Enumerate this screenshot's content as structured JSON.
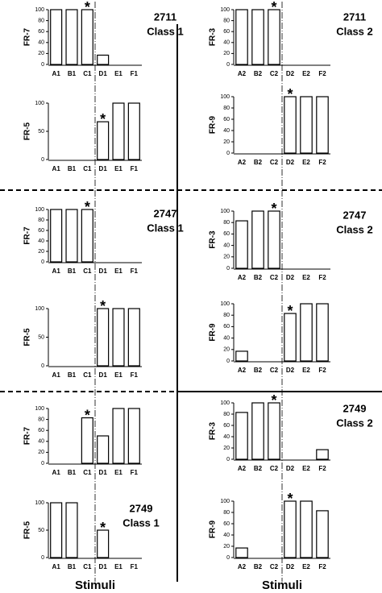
{
  "chart_data": [
    {
      "type": "bar",
      "ylabel": "FR-7",
      "categories": [
        "A1",
        "B1",
        "C1",
        "D1",
        "E1",
        "F1"
      ],
      "values": [
        100,
        100,
        100,
        17,
        0,
        0
      ],
      "ylim": [
        0,
        100
      ],
      "yticks": [
        0,
        20,
        40,
        60,
        80,
        100
      ],
      "color": "#ffffff",
      "annotations": [
        {
          "text": "*",
          "x": "C1"
        }
      ],
      "label_lines": [
        "2711",
        "Class 1"
      ]
    },
    {
      "type": "bar",
      "ylabel": "FR-5",
      "categories": [
        "A1",
        "B1",
        "C1",
        "D1",
        "E1",
        "F1"
      ],
      "values": [
        0,
        0,
        0,
        67,
        100,
        100
      ],
      "ylim": [
        0,
        100
      ],
      "yticks": [
        0,
        50,
        100
      ],
      "color": "#ffffff",
      "annotations": [
        {
          "text": "*",
          "x": "D1"
        }
      ]
    },
    {
      "type": "bar",
      "ylabel": "FR-3",
      "categories": [
        "A2",
        "B2",
        "C2",
        "D2",
        "E2",
        "F2"
      ],
      "values": [
        100,
        100,
        100,
        0,
        0,
        0
      ],
      "ylim": [
        0,
        100
      ],
      "yticks": [
        0,
        20,
        40,
        60,
        80,
        100
      ],
      "color": "#ffffff",
      "annotations": [
        {
          "text": "*",
          "x": "C2"
        }
      ],
      "label_lines": [
        "2711",
        "Class 2"
      ]
    },
    {
      "type": "bar",
      "ylabel": "FR-9",
      "categories": [
        "A2",
        "B2",
        "C2",
        "D2",
        "E2",
        "F2"
      ],
      "values": [
        0,
        0,
        0,
        100,
        100,
        100
      ],
      "ylim": [
        0,
        100
      ],
      "yticks": [
        0,
        20,
        40,
        60,
        80,
        100
      ],
      "color": "#ffffff",
      "annotations": [
        {
          "text": "*",
          "x": "D2"
        }
      ]
    },
    {
      "type": "bar",
      "ylabel": "FR-7",
      "categories": [
        "A1",
        "B1",
        "C1",
        "D1",
        "E1",
        "F1"
      ],
      "values": [
        100,
        100,
        100,
        0,
        0,
        0
      ],
      "ylim": [
        0,
        100
      ],
      "yticks": [
        0,
        20,
        40,
        60,
        80,
        100
      ],
      "color": "#ffffff",
      "annotations": [
        {
          "text": "*",
          "x": "C1"
        }
      ],
      "label_lines": [
        "2747",
        "Class 1"
      ]
    },
    {
      "type": "bar",
      "ylabel": "FR-5",
      "categories": [
        "A1",
        "B1",
        "C1",
        "D1",
        "E1",
        "F1"
      ],
      "values": [
        0,
        0,
        0,
        100,
        100,
        100
      ],
      "ylim": [
        0,
        100
      ],
      "yticks": [
        0,
        50,
        100
      ],
      "color": "#ffffff",
      "annotations": [
        {
          "text": "*",
          "x": "D1"
        }
      ]
    },
    {
      "type": "bar",
      "ylabel": "FR-3",
      "categories": [
        "A2",
        "B2",
        "C2",
        "D2",
        "E2",
        "F2"
      ],
      "values": [
        83,
        100,
        100,
        0,
        0,
        0
      ],
      "ylim": [
        0,
        100
      ],
      "yticks": [
        0,
        20,
        40,
        60,
        80,
        100
      ],
      "color": "#ffffff",
      "annotations": [
        {
          "text": "*",
          "x": "C2"
        }
      ],
      "label_lines": [
        "2747",
        "Class 2"
      ]
    },
    {
      "type": "bar",
      "ylabel": "FR-9",
      "categories": [
        "A2",
        "B2",
        "C2",
        "D2",
        "E2",
        "F2"
      ],
      "values": [
        17,
        0,
        0,
        83,
        100,
        100
      ],
      "ylim": [
        0,
        100
      ],
      "yticks": [
        0,
        20,
        40,
        60,
        80,
        100
      ],
      "color": "#ffffff",
      "annotations": [
        {
          "text": "*",
          "x": "D2"
        }
      ]
    },
    {
      "type": "bar",
      "ylabel": "FR-7",
      "categories": [
        "A1",
        "B1",
        "C1",
        "D1",
        "E1",
        "F1"
      ],
      "values": [
        0,
        0,
        83,
        50,
        100,
        100
      ],
      "ylim": [
        0,
        100
      ],
      "yticks": [
        0,
        20,
        40,
        60,
        80,
        100
      ],
      "color": "#ffffff",
      "annotations": [
        {
          "text": "*",
          "x": "C1"
        }
      ]
    },
    {
      "type": "bar",
      "ylabel": "FR-5",
      "categories": [
        "A1",
        "B1",
        "C1",
        "D1",
        "E1",
        "F1"
      ],
      "values": [
        100,
        100,
        0,
        50,
        0,
        0
      ],
      "ylim": [
        0,
        100
      ],
      "yticks": [
        0,
        50,
        100
      ],
      "color": "#ffffff",
      "annotations": [
        {
          "text": "*",
          "x": "D1"
        }
      ],
      "label_lines": [
        "2749",
        "Class 1"
      ]
    },
    {
      "type": "bar",
      "ylabel": "FR-3",
      "categories": [
        "A2",
        "B2",
        "C2",
        "D2",
        "E2",
        "F2"
      ],
      "values": [
        83,
        100,
        100,
        0,
        0,
        17
      ],
      "ylim": [
        0,
        100
      ],
      "yticks": [
        0,
        20,
        40,
        60,
        80,
        100
      ],
      "color": "#ffffff",
      "annotations": [
        {
          "text": "*",
          "x": "C2"
        }
      ],
      "label_lines": [
        "2749",
        "Class 2"
      ]
    },
    {
      "type": "bar",
      "ylabel": "FR-9",
      "categories": [
        "A2",
        "B2",
        "C2",
        "D2",
        "E2",
        "F2"
      ],
      "values": [
        17,
        0,
        0,
        100,
        100,
        83
      ],
      "ylim": [
        0,
        100
      ],
      "yticks": [
        0,
        20,
        40,
        60,
        80,
        100
      ],
      "color": "#ffffff",
      "annotations": [
        {
          "text": "*",
          "x": "D2"
        }
      ]
    }
  ],
  "x_axis_titles": [
    "Stimuli",
    "Stimuli"
  ]
}
